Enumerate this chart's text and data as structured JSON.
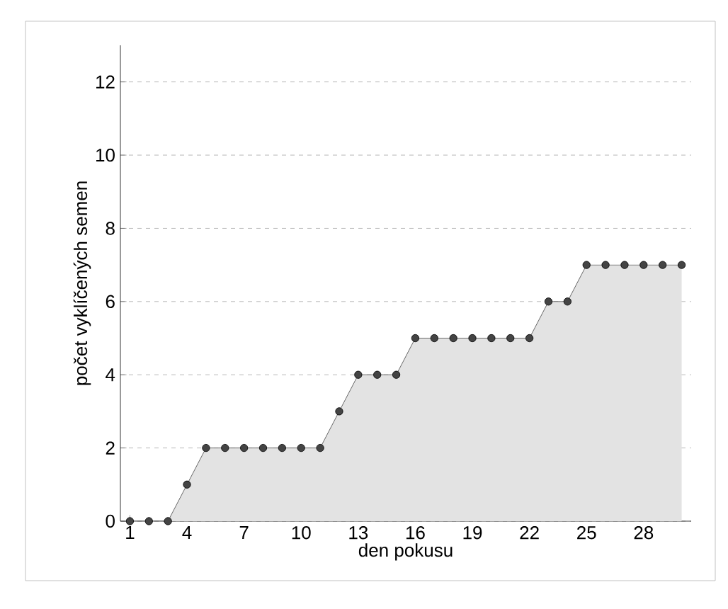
{
  "chart_data": {
    "type": "area",
    "xlabel": "den pokusu",
    "ylabel": "počet vyklíčených semen",
    "x": [
      1,
      2,
      3,
      4,
      5,
      6,
      7,
      8,
      9,
      10,
      11,
      12,
      13,
      14,
      15,
      16,
      17,
      18,
      19,
      20,
      21,
      22,
      23,
      24,
      25,
      26,
      27,
      28,
      29,
      30
    ],
    "series": [
      {
        "color": "#444444",
        "values": [
          0,
          0,
          0,
          1,
          2,
          2,
          2,
          2,
          2,
          2,
          2,
          3,
          4,
          4,
          4,
          5,
          5,
          5,
          5,
          5,
          5,
          5,
          6,
          6,
          7,
          7,
          7,
          7,
          7,
          7
        ]
      }
    ],
    "xlim": [
      0.5,
      30.5
    ],
    "xticks": [
      1,
      4,
      7,
      10,
      13,
      16,
      19,
      22,
      25,
      28
    ],
    "ylim": [
      0,
      13
    ],
    "yticks": [
      0,
      2,
      4,
      6,
      8,
      10,
      12
    ],
    "grid": "y",
    "marker": "circle"
  }
}
